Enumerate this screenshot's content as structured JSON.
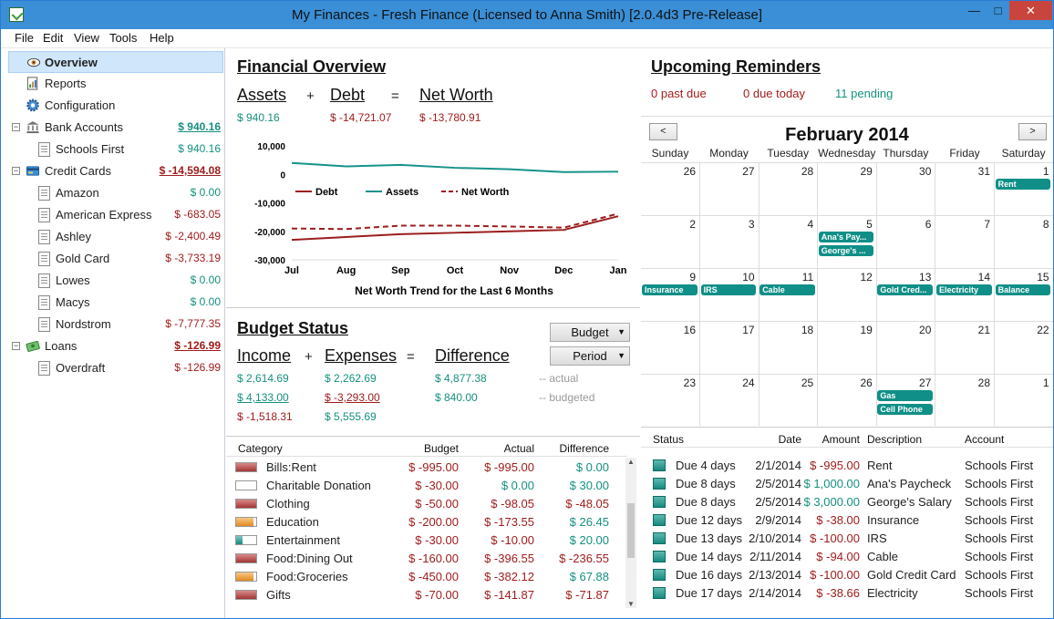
{
  "window": {
    "title": "My Finances - Fresh Finance (Licensed to Anna Smith) [2.0.4d3 Pre-Release]",
    "min": "—",
    "max": "□",
    "close": "✕"
  },
  "menu": [
    "File",
    "Edit",
    "View",
    "Tools",
    "Help"
  ],
  "sidebar": {
    "overview": "Overview",
    "reports": "Reports",
    "configuration": "Configuration",
    "bank": {
      "label": "Bank Accounts",
      "amount": "$ 940.16",
      "items": [
        {
          "label": "Schools First",
          "amount": "$ 940.16"
        }
      ]
    },
    "credit": {
      "label": "Credit Cards",
      "amount": "$ -14,594.08",
      "items": [
        {
          "label": "Amazon",
          "amount": "$ 0.00"
        },
        {
          "label": "American Express",
          "amount": "$ -683.05"
        },
        {
          "label": "Ashley",
          "amount": "$ -2,400.49"
        },
        {
          "label": "Gold Card",
          "amount": "$ -3,733.19"
        },
        {
          "label": "Lowes",
          "amount": "$ 0.00"
        },
        {
          "label": "Macys",
          "amount": "$ 0.00"
        },
        {
          "label": "Nordstrom",
          "amount": "$ -7,777.35"
        }
      ]
    },
    "loans": {
      "label": "Loans",
      "amount": "$ -126.99",
      "items": [
        {
          "label": "Overdraft",
          "amount": "$ -126.99"
        }
      ]
    }
  },
  "overview": {
    "title": "Financial Overview",
    "assets_label": "Assets",
    "debt_label": "Debt",
    "networth_label": "Net Worth",
    "plus": "+",
    "eq": "=",
    "assets": "$ 940.16",
    "debt": "$ -14,721.07",
    "networth": "$ -13,780.91"
  },
  "chart_data": {
    "type": "line",
    "title": "Net Worth Trend for the Last 6 Months",
    "categories": [
      "Jul",
      "Aug",
      "Sep",
      "Oct",
      "Nov",
      "Dec",
      "Jan"
    ],
    "yticks": [
      "10,000",
      "0",
      "-10,000",
      "-20,000",
      "-30,000"
    ],
    "ylim": [
      -30000,
      10000
    ],
    "series": [
      {
        "name": "Debt",
        "color": "#9b1d1d",
        "dash": false,
        "values": [
          -23000,
          -22000,
          -21000,
          -20500,
          -20000,
          -19500,
          -14700
        ]
      },
      {
        "name": "Assets",
        "color": "#15938a",
        "dash": false,
        "values": [
          4000,
          2800,
          3300,
          2300,
          1800,
          800,
          940
        ]
      },
      {
        "name": "Net Worth",
        "color": "#9b1d1d",
        "dash": true,
        "values": [
          -19000,
          -19200,
          -18000,
          -18000,
          -18300,
          -18700,
          -13800
        ]
      }
    ],
    "legend": "top-left"
  },
  "budget": {
    "title": "Budget Status",
    "dd_budget": "Budget",
    "dd_period": "Period",
    "income_label": "Income",
    "expenses_label": "Expenses",
    "difference_label": "Difference",
    "plus": "+",
    "eq": "=",
    "actual": {
      "income": "$ 2,614.69",
      "expenses": "$ 2,262.69",
      "difference": "$ 4,877.38",
      "note": "-- actual"
    },
    "budgeted": {
      "income": "$ 4,133.00",
      "expenses": "$ -3,293.00",
      "difference": "$ 840.00",
      "note": "-- budgeted"
    },
    "remain": {
      "income": "$ -1,518.31",
      "expenses": "$ 5,555.69"
    }
  },
  "categories": {
    "headers": [
      "Category",
      "Budget",
      "Actual",
      "Difference"
    ],
    "rows": [
      {
        "name": "Bills:Rent",
        "budget": "$ -995.00",
        "actual": "$ -995.00",
        "diff": "$ 0.00",
        "fill": 1.0,
        "color": "red",
        "diffpos": true,
        "actpos": false
      },
      {
        "name": "Charitable Donation",
        "budget": "$ -30.00",
        "actual": "$ 0.00",
        "diff": "$ 30.00",
        "fill": 0.0,
        "color": "red",
        "diffpos": true,
        "actpos": true
      },
      {
        "name": "Clothing",
        "budget": "$ -50.00",
        "actual": "$ -98.05",
        "diff": "$ -48.05",
        "fill": 1.0,
        "color": "red",
        "diffpos": false,
        "actpos": false
      },
      {
        "name": "Education",
        "budget": "$ -200.00",
        "actual": "$ -173.55",
        "diff": "$ 26.45",
        "fill": 0.87,
        "color": "orange",
        "diffpos": true,
        "actpos": false
      },
      {
        "name": "Entertainment",
        "budget": "$ -30.00",
        "actual": "$ -10.00",
        "diff": "$ 20.00",
        "fill": 0.33,
        "color": "teal",
        "diffpos": true,
        "actpos": false
      },
      {
        "name": "Food:Dining Out",
        "budget": "$ -160.00",
        "actual": "$ -396.55",
        "diff": "$ -236.55",
        "fill": 1.0,
        "color": "red",
        "diffpos": false,
        "actpos": false
      },
      {
        "name": "Food:Groceries",
        "budget": "$ -450.00",
        "actual": "$ -382.12",
        "diff": "$ 67.88",
        "fill": 0.85,
        "color": "orange",
        "diffpos": true,
        "actpos": false
      },
      {
        "name": "Gifts",
        "budget": "$ -70.00",
        "actual": "$ -141.87",
        "diff": "$ -71.87",
        "fill": 1.0,
        "color": "red",
        "diffpos": false,
        "actpos": false
      }
    ]
  },
  "reminders": {
    "title": "Upcoming Reminders",
    "past_due": "0 past due",
    "due_today": "0 due today",
    "pending": "11 pending"
  },
  "calendar": {
    "month": "February 2014",
    "prev": "<",
    "next": ">",
    "dow": [
      "Sunday",
      "Monday",
      "Tuesday",
      "Wednesday",
      "Thursday",
      "Friday",
      "Saturday"
    ],
    "weeks": [
      [
        "26",
        "27",
        "28",
        "29",
        "30",
        "31",
        "1"
      ],
      [
        "2",
        "3",
        "4",
        "5",
        "6",
        "7",
        "8"
      ],
      [
        "9",
        "10",
        "11",
        "12",
        "13",
        "14",
        "15"
      ],
      [
        "16",
        "17",
        "18",
        "19",
        "20",
        "21",
        "22"
      ],
      [
        "23",
        "24",
        "25",
        "26",
        "27",
        "28",
        "1"
      ]
    ],
    "events": [
      {
        "label": "Rent",
        "week": 0,
        "day": 6,
        "slot": 0,
        "span": 1
      },
      {
        "label": "Ana's Pay...",
        "week": 1,
        "day": 3,
        "slot": 0,
        "span": 1
      },
      {
        "label": "George's ...",
        "week": 1,
        "day": 3,
        "slot": 1,
        "span": 1
      },
      {
        "label": "Insurance",
        "week": 2,
        "day": 0,
        "slot": 0,
        "span": 1
      },
      {
        "label": "IRS",
        "week": 2,
        "day": 1,
        "slot": 0,
        "span": 1
      },
      {
        "label": "Cable",
        "week": 2,
        "day": 2,
        "slot": 0,
        "span": 1
      },
      {
        "label": "Gold Cred...",
        "week": 2,
        "day": 4,
        "slot": 0,
        "span": 1
      },
      {
        "label": "Electricity",
        "week": 2,
        "day": 5,
        "slot": 0,
        "span": 1
      },
      {
        "label": "Balance",
        "week": 2,
        "day": 6,
        "slot": 0,
        "span": 1
      },
      {
        "label": "Gas",
        "week": 4,
        "day": 4,
        "slot": 0,
        "span": 1
      },
      {
        "label": "Cell Phone",
        "week": 4,
        "day": 4,
        "slot": 1,
        "span": 1
      }
    ]
  },
  "reminder_table": {
    "headers": [
      "Status",
      "Date",
      "Amount",
      "Description",
      "Account"
    ],
    "rows": [
      {
        "status": "Due 4 days",
        "date": "2/1/2014",
        "amount": "$ -995.00",
        "pos": false,
        "desc": "Rent",
        "account": "Schools First"
      },
      {
        "status": "Due 8 days",
        "date": "2/5/2014",
        "amount": "$ 1,000.00",
        "pos": true,
        "desc": "Ana's Paycheck",
        "account": "Schools First"
      },
      {
        "status": "Due 8 days",
        "date": "2/5/2014",
        "amount": "$ 3,000.00",
        "pos": true,
        "desc": "George's Salary",
        "account": "Schools First"
      },
      {
        "status": "Due 12 days",
        "date": "2/9/2014",
        "amount": "$ -38.00",
        "pos": false,
        "desc": "Insurance",
        "account": "Schools First"
      },
      {
        "status": "Due 13 days",
        "date": "2/10/2014",
        "amount": "$ -100.00",
        "pos": false,
        "desc": "IRS",
        "account": "Schools First"
      },
      {
        "status": "Due 14 days",
        "date": "2/11/2014",
        "amount": "$ -94.00",
        "pos": false,
        "desc": "Cable",
        "account": "Schools First"
      },
      {
        "status": "Due 16 days",
        "date": "2/13/2014",
        "amount": "$ -100.00",
        "pos": false,
        "desc": "Gold Credit Card",
        "account": "Schools First"
      },
      {
        "status": "Due 17 days",
        "date": "2/14/2014",
        "amount": "$ -38.66",
        "pos": false,
        "desc": "Electricity",
        "account": "Schools First"
      }
    ]
  }
}
